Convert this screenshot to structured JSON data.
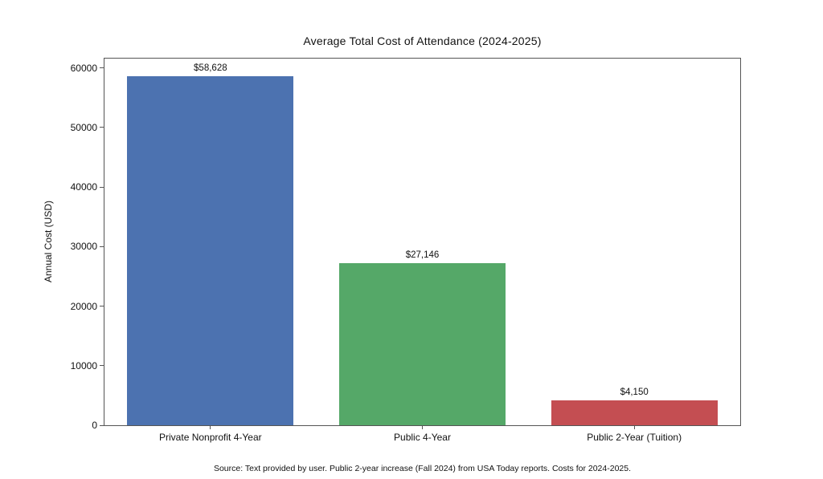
{
  "chart_data": {
    "type": "bar",
    "title": "Average Total Cost of Attendance (2024-2025)",
    "xlabel": "",
    "ylabel": "Annual Cost (USD)",
    "categories": [
      "Private Nonprofit 4-Year",
      "Public 4-Year",
      "Public 2-Year (Tuition)"
    ],
    "values": [
      58628,
      27146,
      4150
    ],
    "value_labels": [
      "$58,628",
      "$27,146",
      "$4,150"
    ],
    "bar_colors": [
      "#4C72B0",
      "#55A868",
      "#C44E52"
    ],
    "yticks": [
      0,
      10000,
      20000,
      30000,
      40000,
      50000,
      60000
    ],
    "ylim": [
      0,
      61559
    ],
    "grid": false,
    "legend": "none",
    "bar_width_fraction": 0.785,
    "annotation": "Source: Text provided by user. Public 2-year increase (Fall 2024) from USA Today reports. Costs for 2024-2025."
  },
  "colors": {
    "background": "#ffffff",
    "spine": "#555555",
    "text": "#111111"
  }
}
